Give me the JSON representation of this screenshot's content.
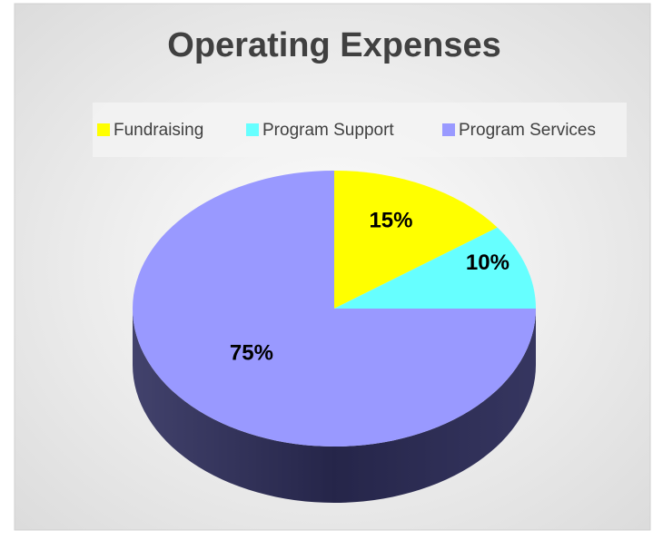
{
  "chart_data": {
    "type": "pie",
    "title": "Operating Expenses",
    "categories": [
      "Fundraising",
      "Program Support",
      "Program Services"
    ],
    "values": [
      15,
      10,
      75
    ],
    "value_labels": [
      "15%",
      "10%",
      "75%"
    ],
    "colors": [
      "#ffff00",
      "#66ffff",
      "#9999ff"
    ],
    "legend": "top"
  }
}
